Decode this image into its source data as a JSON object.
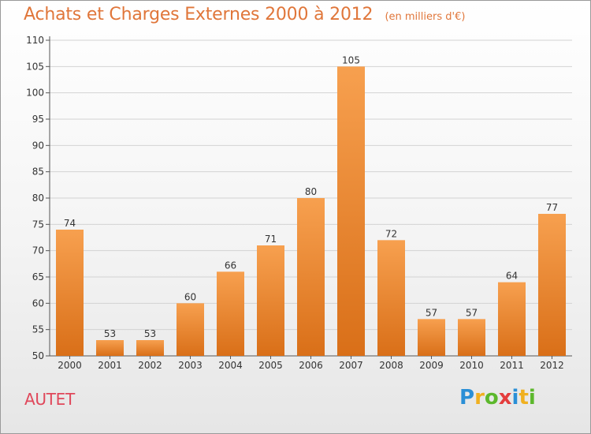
{
  "title": "Achats et Charges Externes 2000 à 2012",
  "subtitle": "(en milliers d'€)",
  "commune": "AUTET",
  "brand": {
    "letters": [
      "P",
      "r",
      "o",
      "x",
      "i",
      "t",
      "i"
    ],
    "colors": [
      "#2a8fd6",
      "#f0b020",
      "#5cb82c",
      "#e43d3d",
      "#2a8fd6",
      "#f0b020",
      "#5cb82c"
    ]
  },
  "chart_data": {
    "type": "bar",
    "title": "Achats et Charges Externes 2000 à 2012",
    "subtitle": "(en milliers d'€)",
    "categories": [
      "2000",
      "2001",
      "2002",
      "2003",
      "2004",
      "2005",
      "2006",
      "2007",
      "2008",
      "2009",
      "2010",
      "2011",
      "2012"
    ],
    "values": [
      74,
      53,
      53,
      60,
      66,
      71,
      80,
      105,
      72,
      57,
      57,
      64,
      77
    ],
    "ylim": [
      50,
      110
    ],
    "yticks": [
      50,
      55,
      60,
      65,
      70,
      75,
      80,
      85,
      90,
      95,
      100,
      105,
      110
    ],
    "grid": true,
    "bar_color_top": "#f7a04f",
    "bar_color_bottom": "#d96f18"
  }
}
